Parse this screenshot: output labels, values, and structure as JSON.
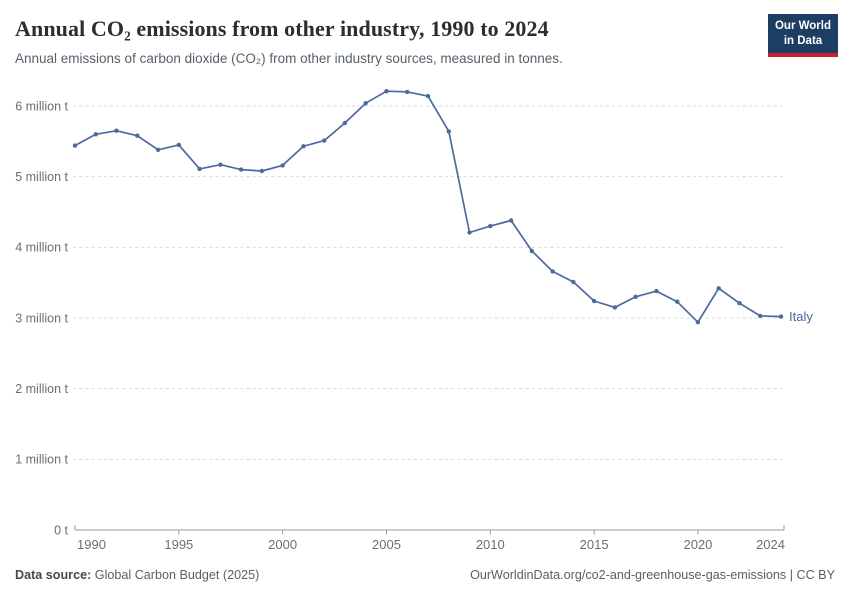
{
  "header": {
    "title": "Annual CO₂ emissions from other industry, 1990 to 2024",
    "subtitle": "Annual emissions of carbon dioxide (CO₂) from other industry sources, measured in tonnes.",
    "logo_line1": "Our World",
    "logo_line2": "in Data"
  },
  "colors": {
    "series_line": "#4c6a9c",
    "logo_background": "#1d3d63",
    "logo_bar": "#c82331",
    "gridline": "#d9d9d9",
    "axis": "#999999",
    "tick_label": "#6e6e6e"
  },
  "chart_data": {
    "type": "line",
    "title": "Annual CO₂ emissions from other industry, 1990 to 2024",
    "xlabel": "",
    "ylabel": "",
    "unit": "million tonnes",
    "grid": true,
    "ylim": [
      0,
      6.5
    ],
    "xlim": [
      1990,
      2024
    ],
    "x": [
      1990,
      1991,
      1992,
      1993,
      1994,
      1995,
      1996,
      1997,
      1998,
      1999,
      2000,
      2001,
      2002,
      2003,
      2004,
      2005,
      2006,
      2007,
      2008,
      2009,
      2010,
      2011,
      2012,
      2013,
      2014,
      2015,
      2016,
      2017,
      2018,
      2019,
      2020,
      2021,
      2022,
      2023,
      2024
    ],
    "series": [
      {
        "name": "Italy",
        "color": "#4c6a9c",
        "values": [
          5.44,
          5.6,
          5.65,
          5.58,
          5.38,
          5.45,
          5.11,
          5.17,
          5.1,
          5.08,
          5.16,
          5.43,
          5.51,
          5.76,
          6.04,
          6.21,
          6.2,
          6.14,
          5.64,
          4.21,
          4.3,
          4.38,
          3.95,
          3.66,
          3.51,
          3.24,
          3.15,
          3.3,
          3.38,
          3.23,
          2.94,
          3.42,
          3.21,
          3.03,
          3.02
        ]
      }
    ],
    "yticks": [
      {
        "value": 0,
        "label": "0 t"
      },
      {
        "value": 1,
        "label": "1 million t"
      },
      {
        "value": 2,
        "label": "2 million t"
      },
      {
        "value": 3,
        "label": "3 million t"
      },
      {
        "value": 4,
        "label": "4 million t"
      },
      {
        "value": 5,
        "label": "5 million t"
      },
      {
        "value": 6,
        "label": "6 million t"
      }
    ],
    "xticks": [
      1990,
      1995,
      2000,
      2005,
      2010,
      2015,
      2020,
      2024
    ],
    "legend_position": "end-of-line",
    "entity_label": "Italy"
  },
  "footer": {
    "source_label": "Data source:",
    "source_value": "Global Carbon Budget (2025)",
    "credit": "OurWorldinData.org/co2-and-greenhouse-gas-emissions | CC BY"
  }
}
